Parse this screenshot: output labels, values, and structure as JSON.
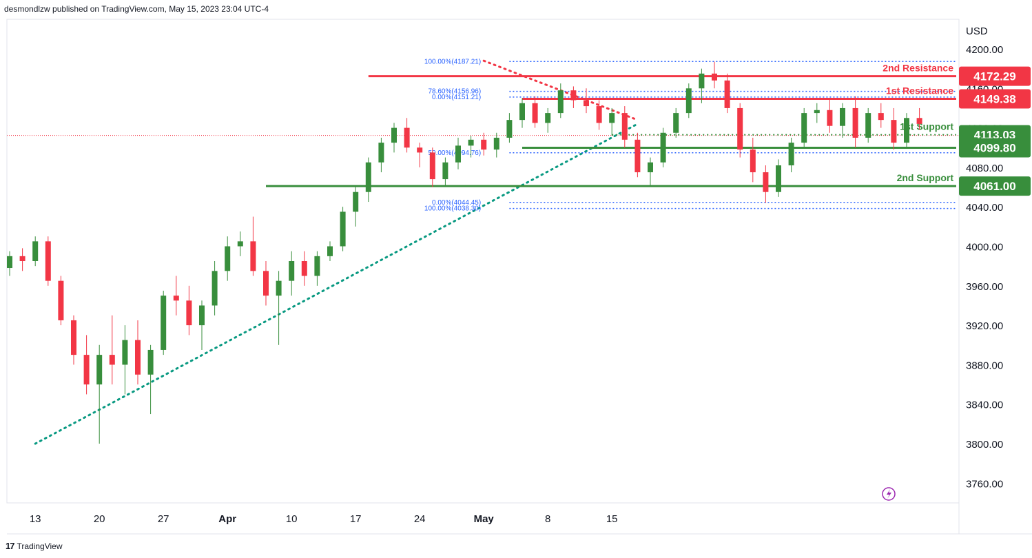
{
  "header": {
    "published": "desmondlzw published on TradingView.com, May 15, 2023 23:04 UTC-4"
  },
  "footer": {
    "brand": "TradingView",
    "logo": "17"
  },
  "chart_data": {
    "type": "candlestick",
    "currency": "USD",
    "ylim": [
      3740,
      4230
    ],
    "y_ticks": [
      "4200.00",
      "4160.00",
      "4120.00",
      "4080.00",
      "4040.00",
      "4000.00",
      "3960.00",
      "3920.00",
      "3880.00",
      "3840.00",
      "3800.00",
      "3760.00"
    ],
    "y_tick_values": [
      4200,
      4160,
      4120,
      4080,
      4040,
      4000,
      3960,
      3920,
      3880,
      3840,
      3800,
      3760
    ],
    "x_ticks": [
      "13",
      "20",
      "27",
      "Apr",
      "10",
      "17",
      "24",
      "May",
      "8",
      "15"
    ],
    "x_tick_dates": [
      "2023-03-13",
      "2023-03-20",
      "2023-03-27",
      "2023-04-03",
      "2023-04-10",
      "2023-04-17",
      "2023-04-24",
      "2023-05-01",
      "2023-05-08",
      "2023-05-15"
    ],
    "colors": {
      "up": "#388e3c",
      "down": "#f23645",
      "resistance": "#f23645",
      "support": "#388e3c",
      "fib": "#2962ff",
      "trend_up": "#089981",
      "current": "#f23645"
    },
    "last_price": 4113.03,
    "price_labels": [
      {
        "value": 4172.29,
        "text": "4172.29",
        "kind": "resistance"
      },
      {
        "value": 4149.38,
        "text": "4149.38",
        "kind": "resistance"
      },
      {
        "value": 4113.03,
        "text": "4113.03",
        "kind": "support"
      },
      {
        "value": 4099.8,
        "text": "4099.80",
        "kind": "support"
      },
      {
        "value": 4061.0,
        "text": "4061.00",
        "kind": "support"
      }
    ],
    "levels": [
      {
        "name": "2nd Resistance",
        "value": 4172.29,
        "kind": "resistance",
        "from": "2023-04-18"
      },
      {
        "name": "1st Resistance",
        "value": 4149.38,
        "kind": "resistance",
        "from": "2023-05-04"
      },
      {
        "name": "1st Support",
        "value": 4113.03,
        "kind": "support",
        "from": "2023-05-15"
      },
      {
        "name": "",
        "value": 4099.8,
        "kind": "support",
        "from": "2023-05-04"
      },
      {
        "name": "2nd Support",
        "value": 4061.0,
        "kind": "support",
        "from": "2023-04-06"
      }
    ],
    "fib_labels": [
      {
        "text": "100.00%(4187.21)",
        "value": 4187.21
      },
      {
        "text": "78.60%(4156.96)",
        "value": 4156.96
      },
      {
        "text": "0.00%(4151.21)",
        "value": 4151.21
      },
      {
        "text": "50.00%(4094.76)",
        "value": 4094.76
      },
      {
        "text": "0.00%(4044.45)",
        "value": 4044.45
      },
      {
        "text": "100.00%(4038.30)",
        "value": 4038.3
      }
    ],
    "trendlines": [
      {
        "kind": "rising-support",
        "from": [
          "2023-03-13",
          3800
        ],
        "to": [
          "2023-05-17",
          4124
        ]
      },
      {
        "kind": "falling-resistance",
        "from": [
          "2023-05-01",
          4188
        ],
        "to": [
          "2023-05-17",
          4128
        ]
      }
    ],
    "candles": [
      [
        3978,
        3995,
        3970,
        3990
      ],
      [
        3990,
        3998,
        3975,
        3985
      ],
      [
        3985,
        4010,
        3980,
        4005
      ],
      [
        4005,
        4010,
        3960,
        3965
      ],
      [
        3965,
        3970,
        3920,
        3925
      ],
      [
        3925,
        3930,
        3880,
        3890
      ],
      [
        3890,
        3910,
        3850,
        3860
      ],
      [
        3860,
        3900,
        3800,
        3890
      ],
      [
        3890,
        3930,
        3860,
        3880
      ],
      [
        3880,
        3920,
        3850,
        3905
      ],
      [
        3905,
        3925,
        3860,
        3870
      ],
      [
        3870,
        3900,
        3830,
        3895
      ],
      [
        3895,
        3955,
        3890,
        3950
      ],
      [
        3950,
        3970,
        3930,
        3945
      ],
      [
        3945,
        3960,
        3910,
        3920
      ],
      [
        3920,
        3945,
        3895,
        3940
      ],
      [
        3940,
        3985,
        3930,
        3975
      ],
      [
        3975,
        4010,
        3965,
        4000
      ],
      [
        4000,
        4015,
        3990,
        4005
      ],
      [
        4005,
        4030,
        3970,
        3975
      ],
      [
        3975,
        3985,
        3940,
        3950
      ],
      [
        3950,
        3975,
        3900,
        3965
      ],
      [
        3965,
        3995,
        3950,
        3985
      ],
      [
        3985,
        3995,
        3960,
        3970
      ],
      [
        3970,
        3995,
        3960,
        3990
      ],
      [
        3990,
        4005,
        3985,
        4000
      ],
      [
        4000,
        4040,
        3995,
        4035
      ],
      [
        4035,
        4060,
        4020,
        4055
      ],
      [
        4055,
        4090,
        4045,
        4085
      ],
      [
        4085,
        4110,
        4075,
        4105
      ],
      [
        4105,
        4125,
        4095,
        4120
      ],
      [
        4120,
        4130,
        4095,
        4100
      ],
      [
        4100,
        4105,
        4080,
        4095
      ],
      [
        4095,
        4100,
        4060,
        4068
      ],
      [
        4068,
        4090,
        4061,
        4085
      ],
      [
        4085,
        4110,
        4078,
        4102
      ],
      [
        4102,
        4112,
        4090,
        4108
      ],
      [
        4108,
        4115,
        4092,
        4098
      ],
      [
        4098,
        4115,
        4090,
        4110
      ],
      [
        4110,
        4135,
        4105,
        4128
      ],
      [
        4128,
        4150,
        4120,
        4145
      ],
      [
        4145,
        4152,
        4120,
        4125
      ],
      [
        4125,
        4140,
        4115,
        4135
      ],
      [
        4135,
        4165,
        4130,
        4158
      ],
      [
        4158,
        4162,
        4140,
        4148
      ],
      [
        4148,
        4160,
        4135,
        4142
      ],
      [
        4142,
        4148,
        4118,
        4125
      ],
      [
        4125,
        4140,
        4112,
        4135
      ],
      [
        4135,
        4142,
        4100,
        4108
      ],
      [
        4108,
        4115,
        4070,
        4075
      ],
      [
        4075,
        4090,
        4060,
        4085
      ],
      [
        4085,
        4120,
        4080,
        4115
      ],
      [
        4115,
        4140,
        4110,
        4135
      ],
      [
        4135,
        4165,
        4130,
        4160
      ],
      [
        4160,
        4180,
        4145,
        4175
      ],
      [
        4175,
        4187,
        4160,
        4168
      ],
      [
        4168,
        4175,
        4135,
        4140
      ],
      [
        4140,
        4145,
        4090,
        4098
      ],
      [
        4098,
        4110,
        4065,
        4075
      ],
      [
        4075,
        4082,
        4044,
        4055
      ],
      [
        4055,
        4088,
        4050,
        4082
      ],
      [
        4082,
        4110,
        4075,
        4105
      ],
      [
        4105,
        4140,
        4100,
        4135
      ],
      [
        4135,
        4145,
        4125,
        4138
      ],
      [
        4138,
        4150,
        4115,
        4122
      ],
      [
        4122,
        4145,
        4110,
        4140
      ],
      [
        4140,
        4152,
        4100,
        4110
      ],
      [
        4110,
        4140,
        4105,
        4135
      ],
      [
        4135,
        4145,
        4120,
        4128
      ],
      [
        4128,
        4140,
        4098,
        4105
      ],
      [
        4105,
        4135,
        4100,
        4130
      ],
      [
        4130,
        4140,
        4118,
        4124
      ]
    ]
  }
}
